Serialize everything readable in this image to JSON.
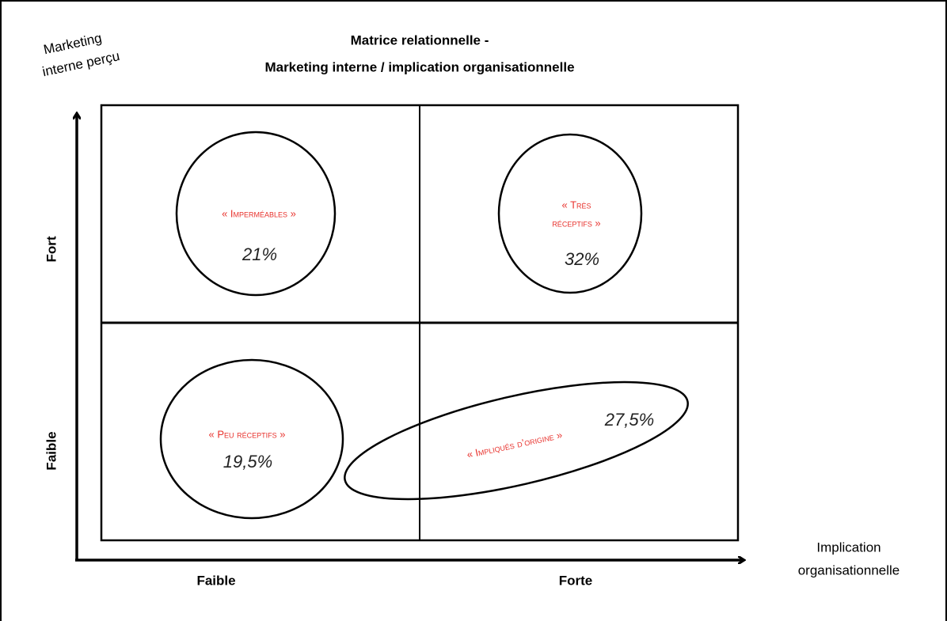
{
  "title": {
    "line1": "Matrice relationnelle -",
    "line2": "Marketing interne / implication organisationnelle"
  },
  "y_axis": {
    "label": [
      "Marketing",
      "interne perçu"
    ],
    "high": "Fort",
    "low": "Faible"
  },
  "x_axis": {
    "label": [
      "Implication",
      "organisationnelle"
    ],
    "low": "Faible",
    "high": "Forte"
  },
  "quadrants": [
    {
      "label": [
        "« Imperméables »"
      ],
      "value": "21%"
    },
    {
      "label": [
        "« Très",
        "réceptifs »"
      ],
      "value": "32%"
    },
    {
      "label": [
        "« Peu réceptifs »"
      ],
      "value": "19,5%"
    },
    {
      "label": [
        "« Impliqués d’origine »"
      ],
      "value": "27,5%"
    }
  ]
}
